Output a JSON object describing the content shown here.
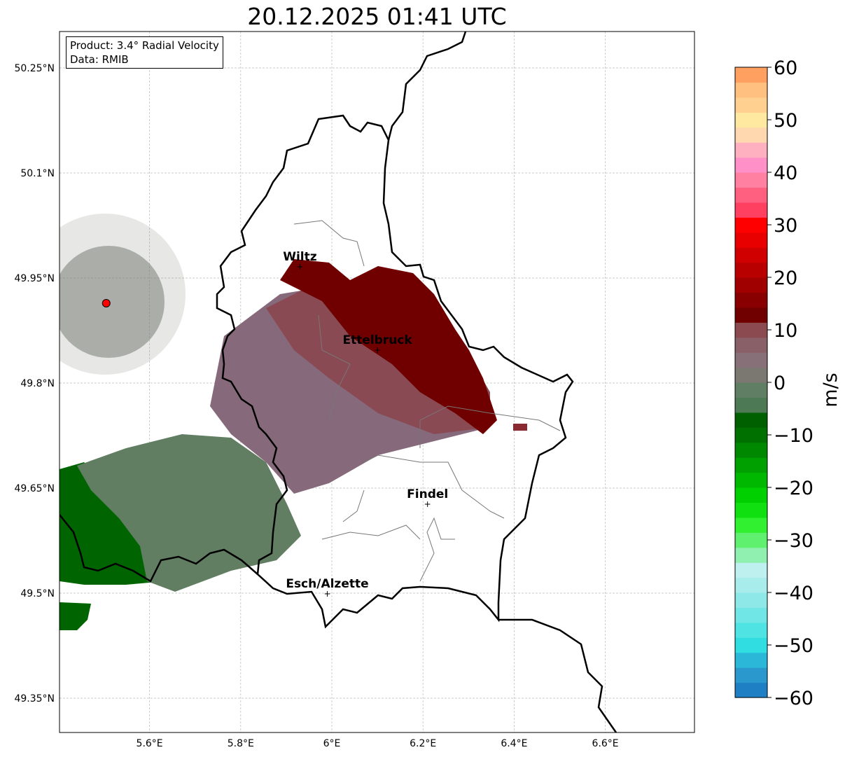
{
  "title": "20.12.2025 01:41 UTC",
  "info": {
    "product": "Product: 3.4° Radial Velocity",
    "data": "Data: RMIB"
  },
  "map": {
    "lon_range": [
      5.4,
      6.8
    ],
    "lat_range": [
      49.3,
      50.3
    ],
    "lon_ticks": [
      {
        "v": 5.6,
        "label": "5.6°E"
      },
      {
        "v": 5.8,
        "label": "5.8°E"
      },
      {
        "v": 6.0,
        "label": "6°E"
      },
      {
        "v": 6.2,
        "label": "6.2°E"
      },
      {
        "v": 6.4,
        "label": "6.4°E"
      },
      {
        "v": 6.6,
        "label": "6.6°E"
      }
    ],
    "lat_ticks": [
      {
        "v": 50.25,
        "label": "50.25°N"
      },
      {
        "v": 50.1,
        "label": "50.1°N"
      },
      {
        "v": 49.95,
        "label": "49.95°N"
      },
      {
        "v": 49.8,
        "label": "49.8°N"
      },
      {
        "v": 49.65,
        "label": "49.65°N"
      },
      {
        "v": 49.5,
        "label": "49.5°N"
      },
      {
        "v": 49.35,
        "label": "49.35°N"
      }
    ],
    "cities": [
      {
        "name": "Wiltz",
        "lon": 5.93,
        "lat": 49.966
      },
      {
        "name": "Ettelbruck",
        "lon": 6.1,
        "lat": 49.847
      },
      {
        "name": "Findel",
        "lon": 6.21,
        "lat": 49.627
      },
      {
        "name": "Esch/Alzette",
        "lon": 5.99,
        "lat": 49.499
      }
    ],
    "radar_site": {
      "lon": 5.505,
      "lat": 49.914,
      "color": "#ff0000"
    }
  },
  "colorbar": {
    "label": "m/s",
    "min": -60,
    "max": 60,
    "ticks": [
      {
        "v": 60,
        "label": "60"
      },
      {
        "v": 50,
        "label": "50"
      },
      {
        "v": 40,
        "label": "40"
      },
      {
        "v": 30,
        "label": "30"
      },
      {
        "v": 20,
        "label": "20"
      },
      {
        "v": 10,
        "label": "10"
      },
      {
        "v": 0,
        "label": "0"
      },
      {
        "v": -10,
        "label": "−10"
      },
      {
        "v": -20,
        "label": "−20"
      },
      {
        "v": -30,
        "label": "−30"
      },
      {
        "v": -40,
        "label": "−40"
      },
      {
        "v": -50,
        "label": "−50"
      },
      {
        "v": -60,
        "label": "−60"
      }
    ],
    "colors": [
      "#1f7fc4",
      "#2a98cc",
      "#2bb8d8",
      "#30dde0",
      "#4fe3e3",
      "#70e6e6",
      "#8fe8e8",
      "#a8ecec",
      "#bff0f0",
      "#90f0b0",
      "#60f070",
      "#30f030",
      "#10e010",
      "#00d000",
      "#00b800",
      "#00a000",
      "#008800",
      "#007000",
      "#006000",
      "#4d7a55",
      "#607e63",
      "#7a7870",
      "#887078",
      "#8a6068",
      "#8a4a50",
      "#700000",
      "#880000",
      "#a00000",
      "#b80000",
      "#d00000",
      "#e80000",
      "#ff0000",
      "#ff4060",
      "#ff6080",
      "#ff80a0",
      "#ff90c8",
      "#ffb0c0",
      "#ffd8b0",
      "#ffe8a0",
      "#ffd090",
      "#ffc080",
      "#ffa060"
    ]
  }
}
